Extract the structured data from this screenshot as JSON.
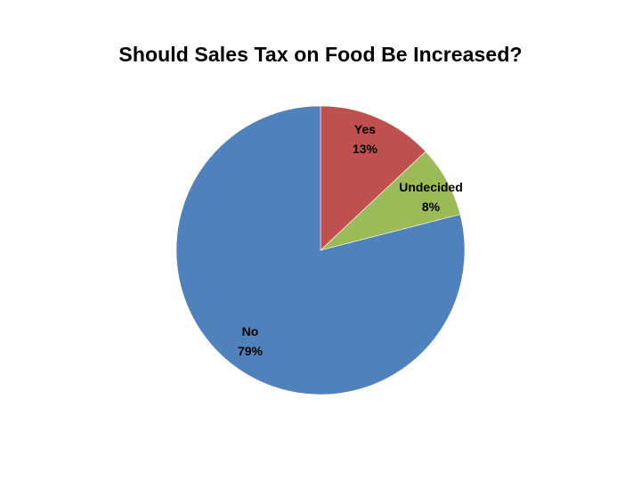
{
  "chart_data": {
    "type": "pie",
    "title": "Should Sales Tax on Food Be Increased?",
    "slices": [
      {
        "label": "Yes",
        "value": 13,
        "value_label": "13%",
        "color": "#C0504D"
      },
      {
        "label": "Undecided",
        "value": 8,
        "value_label": "8%",
        "color": "#9BBB59"
      },
      {
        "label": "No",
        "value": 79,
        "value_label": "79%",
        "color": "#4F81BD"
      }
    ],
    "start_angle": "12 o'clock",
    "direction": "clockwise",
    "legend": "none",
    "data_labels": "category name and percentage"
  }
}
